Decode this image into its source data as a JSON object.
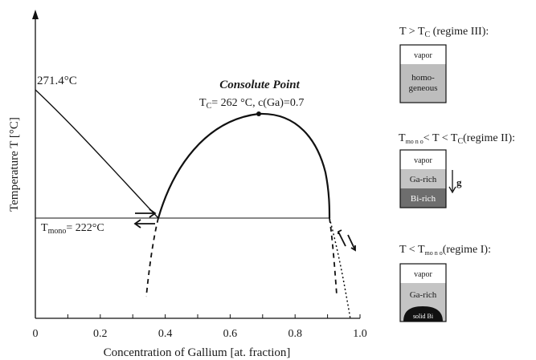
{
  "chart_data": {
    "type": "line",
    "title": "",
    "xlabel": "Concentration of Gallium [at. fraction]",
    "ylabel": "Temperature T [°C]",
    "xlim": [
      0,
      1.0
    ],
    "x_ticks": [
      0,
      0.2,
      0.4,
      0.6,
      0.8,
      1.0
    ],
    "x_tick_labels": [
      "0",
      "0.2",
      "0.4",
      "0.6",
      "0.8",
      "1.0"
    ],
    "annotations": {
      "bi_melting": "271.4°C",
      "consolute_title": "Consolute Point",
      "consolute_values": {
        "prefix": "T",
        "sub": "C",
        "rest": "= 262 °C, c(Ga)=0.7"
      },
      "monotectic": {
        "prefix": "T",
        "sub": "mono",
        "rest": "= 222°C"
      }
    },
    "series": [
      {
        "values": [
          [
            0.0,
            271.4
          ],
          [
            0.1,
            255
          ],
          [
            0.2,
            240
          ],
          [
            0.3,
            229
          ],
          [
            0.38,
            222
          ]
        ]
      },
      {
        "values": [
          [
            0.38,
            222
          ],
          [
            0.45,
            241
          ],
          [
            0.55,
            256
          ],
          [
            0.7,
            262
          ],
          [
            0.82,
            255
          ],
          [
            0.87,
            244
          ],
          [
            0.9,
            230
          ],
          [
            0.91,
            222
          ]
        ]
      },
      {
        "values": [
          [
            0.38,
            222
          ],
          [
            0.91,
            222
          ]
        ]
      }
    ]
  },
  "regimes": [
    {
      "title": {
        "pre": "T > T",
        "sub": "C",
        "post": " (regime III):"
      },
      "layers": [
        "vapor",
        "homo-",
        "geneous"
      ]
    },
    {
      "title": {
        "pre": "T",
        "sub": "mo n o",
        "post": "< T < T",
        "sub2": "C",
        "post2": "(regime II):"
      },
      "layers": [
        "vapor",
        "Ga-rich",
        "Bi-rich"
      ],
      "gravity": "g"
    },
    {
      "title": {
        "pre": "T < T",
        "sub": "mo n o",
        "post": "(regime I):"
      },
      "layers": [
        "vapor",
        "Ga-rich",
        "solid Bi"
      ]
    }
  ],
  "colors": {
    "vapor": "#ffffff",
    "homogeneous": "#bdbdbd",
    "ga_rich": "#c4c4c4",
    "bi_rich": "#6e6e6e",
    "solid_bi": "#111111"
  }
}
